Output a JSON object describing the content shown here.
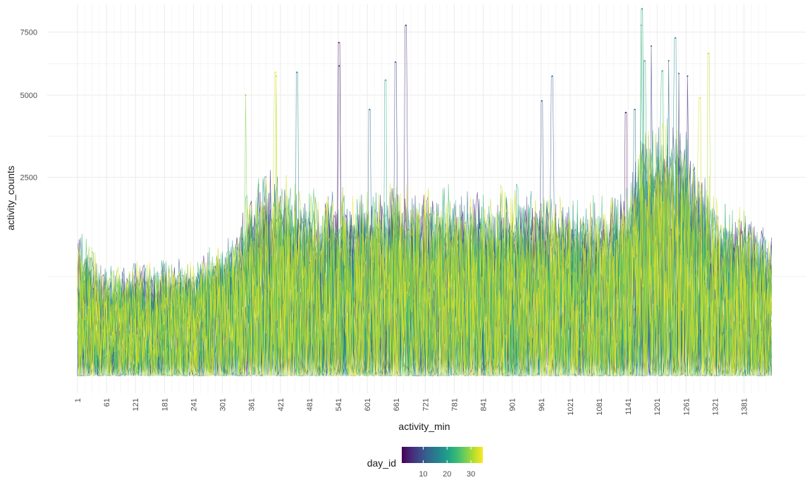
{
  "chart_data": {
    "type": "line",
    "title": "",
    "xlabel": "activity_min",
    "ylabel": "activity_counts",
    "xlim": [
      1,
      1440
    ],
    "ylim": [
      0,
      8600
    ],
    "y_scale": "sqrt",
    "x_ticks": [
      1,
      61,
      121,
      181,
      241,
      301,
      361,
      421,
      481,
      541,
      601,
      661,
      721,
      781,
      841,
      901,
      961,
      1021,
      1081,
      1141,
      1201,
      1261,
      1321,
      1381
    ],
    "y_ticks": [
      2500,
      5000,
      7500
    ],
    "grid": true,
    "legend": {
      "title": "day_id",
      "position": "bottom",
      "type": "colorbar",
      "range": [
        1,
        35
      ],
      "ticks": [
        10,
        20,
        30
      ],
      "colormap": "viridis",
      "colors": [
        "#440154",
        "#482878",
        "#3e4a89",
        "#31688e",
        "#26828e",
        "#1f9e89",
        "#35b779",
        "#6ece58",
        "#b5de2b",
        "#fde725"
      ]
    },
    "series_description": "35 daily series (day_id 1-35), one value per minute",
    "profile": {
      "x": [
        1,
        60,
        120,
        180,
        240,
        300,
        330,
        360,
        400,
        440,
        480,
        540,
        600,
        660,
        720,
        780,
        840,
        900,
        960,
        1020,
        1080,
        1140,
        1170,
        1200,
        1260,
        1300,
        1340,
        1380,
        1440
      ],
      "typical_max": [
        900,
        500,
        550,
        600,
        600,
        800,
        1000,
        1500,
        1900,
        1700,
        1400,
        1500,
        1500,
        1600,
        1500,
        1500,
        1500,
        1500,
        1400,
        1400,
        1300,
        1500,
        2600,
        2800,
        2700,
        1800,
        1200,
        1200,
        900
      ]
    },
    "peaks": [
      {
        "x": 1170,
        "y": 8550,
        "day_id": 20
      },
      {
        "x": 1168,
        "y": 7800,
        "day_id": 24
      },
      {
        "x": 681,
        "y": 7800,
        "day_id": 5
      },
      {
        "x": 542,
        "y": 7050,
        "day_id": 3
      },
      {
        "x": 1239,
        "y": 7250,
        "day_id": 18
      },
      {
        "x": 1189,
        "y": 6900,
        "day_id": 8
      },
      {
        "x": 1307,
        "y": 6600,
        "day_id": 31
      },
      {
        "x": 659,
        "y": 6250,
        "day_id": 9
      },
      {
        "x": 1225,
        "y": 6300,
        "day_id": 12
      },
      {
        "x": 543,
        "y": 6100,
        "day_id": 4
      },
      {
        "x": 411,
        "y": 5850,
        "day_id": 34
      },
      {
        "x": 412,
        "y": 5700,
        "day_id": 30
      },
      {
        "x": 455,
        "y": 5850,
        "day_id": 16
      },
      {
        "x": 639,
        "y": 5550,
        "day_id": 22
      },
      {
        "x": 984,
        "y": 5700,
        "day_id": 11
      },
      {
        "x": 1246,
        "y": 5800,
        "day_id": 7
      },
      {
        "x": 1264,
        "y": 5700,
        "day_id": 6
      },
      {
        "x": 349,
        "y": 5000,
        "day_id": 29
      },
      {
        "x": 1175,
        "y": 6300,
        "day_id": 21
      },
      {
        "x": 1212,
        "y": 5900,
        "day_id": 23
      },
      {
        "x": 962,
        "y": 4800,
        "day_id": 10
      },
      {
        "x": 1155,
        "y": 4500,
        "day_id": 14
      },
      {
        "x": 606,
        "y": 4500,
        "day_id": 13
      },
      {
        "x": 1136,
        "y": 4400,
        "day_id": 2
      },
      {
        "x": 1290,
        "y": 4900,
        "day_id": 33
      }
    ]
  }
}
